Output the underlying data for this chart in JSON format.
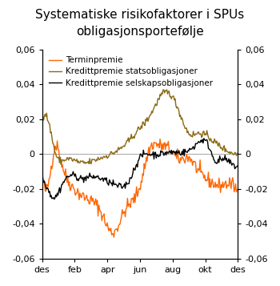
{
  "title_line1": "Systematiske risikofaktorer i SPUs",
  "title_line2": "obligasjonsportefølje",
  "legend_labels": [
    "Terminpremie",
    "Kredittpremie statsobligasjoner",
    "Kredittpremie selskapsobligasjoner"
  ],
  "colors": [
    "#FF6600",
    "#8B6914",
    "#000000"
  ],
  "ylim": [
    -0.06,
    0.06
  ],
  "yticks": [
    -0.06,
    -0.04,
    -0.02,
    0,
    0.02,
    0.04,
    0.06
  ],
  "ytick_labels": [
    "-0,06",
    "-0,04",
    "-0,02",
    "0",
    "0,02",
    "0,04",
    "0,06"
  ],
  "xtick_labels": [
    "des",
    "feb",
    "apr",
    "jun",
    "aug",
    "okt",
    "des"
  ],
  "n_points": 260
}
